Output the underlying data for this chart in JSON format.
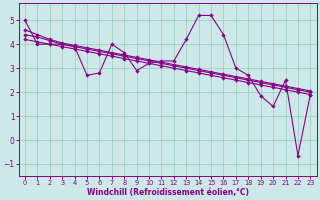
{
  "xlabel": "Windchill (Refroidissement éolien,°C)",
  "background_color": "#cce8e8",
  "grid_color": "#99ccbb",
  "line_color": "#880088",
  "xlim": [
    -0.5,
    23.5
  ],
  "ylim": [
    -1.5,
    5.7
  ],
  "yticks": [
    -1,
    0,
    1,
    2,
    3,
    4,
    5
  ],
  "xticks": [
    0,
    1,
    2,
    3,
    4,
    5,
    6,
    7,
    8,
    9,
    10,
    11,
    12,
    13,
    14,
    15,
    16,
    17,
    18,
    19,
    20,
    21,
    22,
    23
  ],
  "series_main": [
    5.0,
    4.0,
    4.0,
    4.0,
    3.9,
    2.7,
    2.8,
    4.0,
    3.65,
    2.9,
    3.2,
    3.3,
    3.3,
    4.2,
    5.2,
    5.2,
    4.4,
    3.0,
    2.7,
    1.85,
    1.4,
    2.5,
    -0.65,
    1.9
  ],
  "series_line1": [
    4.2,
    4.1,
    4.0,
    3.9,
    3.8,
    3.7,
    3.6,
    3.5,
    3.4,
    3.3,
    3.2,
    3.1,
    3.0,
    2.9,
    2.8,
    2.7,
    2.6,
    2.5,
    2.4,
    2.3,
    2.2,
    2.1,
    2.0,
    1.9
  ],
  "series_line2": [
    4.4,
    4.3,
    4.15,
    4.0,
    3.9,
    3.8,
    3.7,
    3.6,
    3.5,
    3.4,
    3.3,
    3.2,
    3.1,
    3.0,
    2.9,
    2.8,
    2.7,
    2.6,
    2.5,
    2.4,
    2.3,
    2.2,
    2.1,
    2.0
  ],
  "series_line3": [
    4.6,
    4.4,
    4.2,
    4.05,
    3.95,
    3.85,
    3.75,
    3.65,
    3.55,
    3.45,
    3.35,
    3.25,
    3.15,
    3.05,
    2.95,
    2.85,
    2.75,
    2.65,
    2.55,
    2.45,
    2.35,
    2.25,
    2.15,
    2.05
  ]
}
